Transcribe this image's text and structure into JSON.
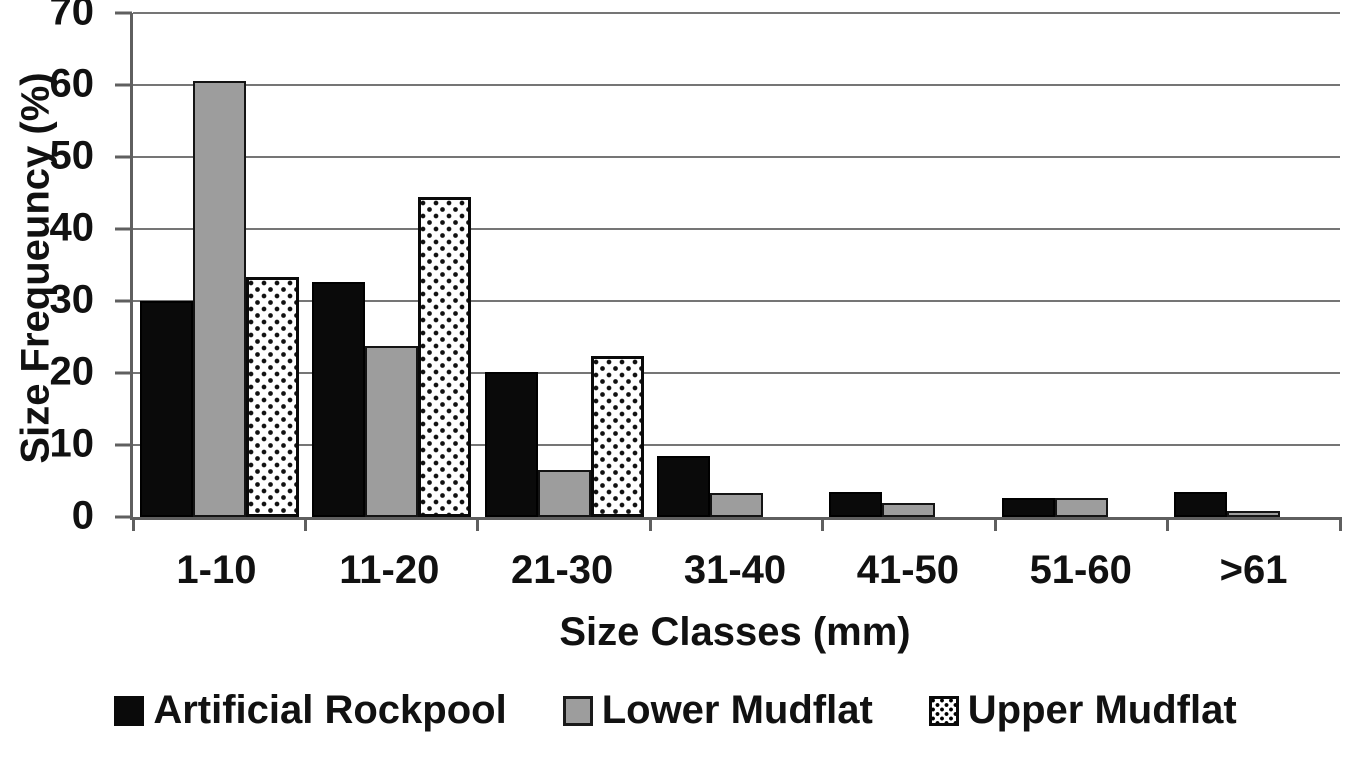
{
  "figure": {
    "background": "#ffffff",
    "text_color": "#111111"
  },
  "chart_data": {
    "type": "bar",
    "title": "",
    "xlabel": "Size Classes (mm)",
    "ylabel": "Size Frequeuncy (%)",
    "categories": [
      "1-10",
      "11-20",
      "21-30",
      "31-40",
      "41-50",
      "51-60",
      ">61"
    ],
    "series": [
      {
        "name": "Artificial Rockpool",
        "style": "solid-black",
        "color": "#0a0a0a",
        "values": [
          30,
          32.7,
          20.1,
          8.5,
          3.5,
          2.7,
          3.5
        ]
      },
      {
        "name": "Lower Mudflat",
        "style": "solid-gray",
        "color": "#9d9d9d",
        "values": [
          60.6,
          23.8,
          6.5,
          3.4,
          2.0,
          2.6,
          0.8
        ]
      },
      {
        "name": "Upper Mudflat",
        "style": "dotted-white",
        "color": "#ffffff",
        "values": [
          33.4,
          44.4,
          22.4,
          0,
          0,
          0,
          0
        ]
      }
    ],
    "ylim": [
      0,
      70
    ],
    "yticks": [
      0,
      10,
      20,
      30,
      40,
      50,
      60,
      70
    ],
    "grid": "horizontal",
    "gridline_color": "#757575",
    "axis_color": "#5f5f5f",
    "legend_position": "bottom"
  }
}
